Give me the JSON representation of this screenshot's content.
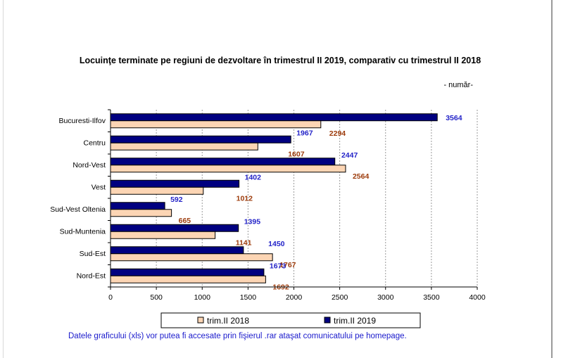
{
  "chart_data": {
    "type": "bar",
    "orientation": "horizontal",
    "title": "Locuinţe terminate pe regiuni de dezvoltare în trimestrul II 2019, comparativ cu trimestrul II 2018",
    "unit_label": "- număr-",
    "categories": [
      "Bucuresti-Ilfov",
      "Centru",
      "Nord-Vest",
      "Vest",
      "Sud-Vest Oltenia",
      "Sud-Muntenia",
      "Sud-Est",
      "Nord-Est"
    ],
    "series": [
      {
        "name": "trim.II 2019",
        "values": [
          3564,
          1967,
          2447,
          1402,
          592,
          1395,
          1450,
          1673
        ],
        "color": "#000080",
        "label_color": "#2323c8"
      },
      {
        "name": "trim.II 2018",
        "values": [
          2294,
          1607,
          2564,
          1012,
          665,
          1141,
          1767,
          1692
        ],
        "color": "#fcd5b4",
        "label_color": "#9c3a0a"
      }
    ],
    "xlim": [
      0,
      4000
    ],
    "xticks": [
      0,
      500,
      1000,
      1500,
      2000,
      2500,
      3000,
      3500,
      4000
    ],
    "grid": "vertical dashed",
    "legend_position": "bottom"
  },
  "footnote": "Datele graficului (xls) vor putea fi accesate prin fişierul .rar ataşat comunicatului pe homepage."
}
